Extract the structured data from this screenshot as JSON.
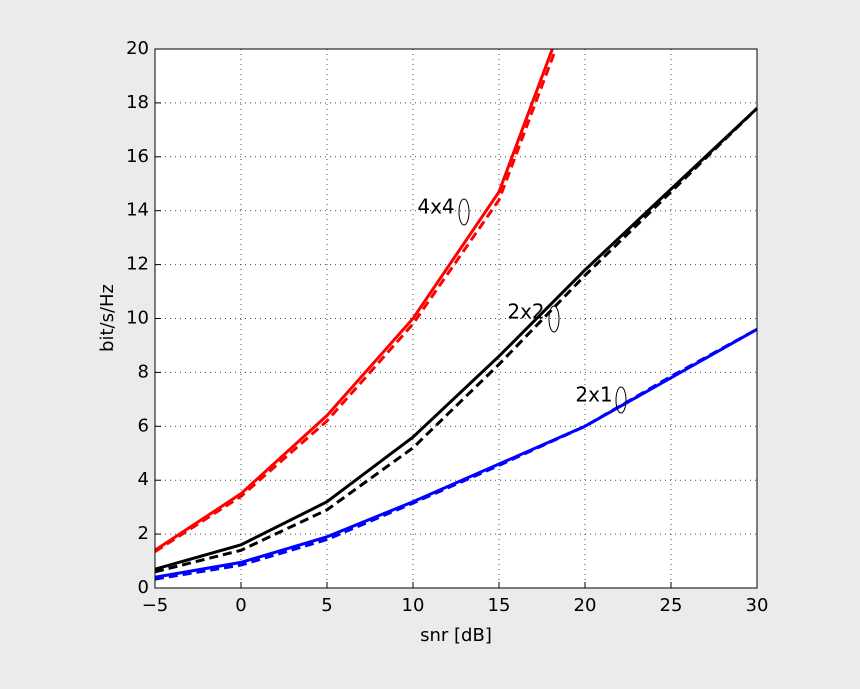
{
  "chart_data": {
    "type": "line",
    "xlabel": "snr [dB]",
    "ylabel": "bit/s/Hz",
    "xlim": [
      -5,
      30
    ],
    "ylim": [
      0,
      20
    ],
    "xticks": [
      {
        "value": -5,
        "label": "−5"
      },
      0,
      5,
      10,
      15,
      20,
      25,
      30
    ],
    "yticks": [
      0,
      2,
      4,
      6,
      8,
      10,
      12,
      14,
      16,
      18,
      20
    ],
    "grid": true,
    "series": [
      {
        "color": "#ff0000",
        "dash": false,
        "x": [
          -5,
          0,
          5,
          10,
          15,
          18.1
        ],
        "values": [
          1.4,
          3.5,
          6.4,
          10.0,
          14.7,
          20
        ]
      },
      {
        "color": "#ff0000",
        "dash": true,
        "x": [
          -5,
          0,
          5,
          10,
          15,
          18.3
        ],
        "values": [
          1.35,
          3.4,
          6.2,
          9.8,
          14.4,
          20
        ]
      },
      {
        "color": "#000000",
        "dash": false,
        "x": [
          -5,
          0,
          5,
          10,
          15,
          20,
          25,
          30
        ],
        "values": [
          0.7,
          1.6,
          3.2,
          5.6,
          8.6,
          11.8,
          14.8,
          17.8
        ]
      },
      {
        "color": "#000000",
        "dash": true,
        "x": [
          -5,
          0,
          5,
          10,
          15,
          20,
          25,
          30
        ],
        "values": [
          0.6,
          1.4,
          2.9,
          5.2,
          8.3,
          11.6,
          14.7,
          17.8
        ]
      },
      {
        "color": "#0000ff",
        "dash": false,
        "x": [
          -5,
          0,
          5,
          10,
          15,
          20,
          25,
          30
        ],
        "values": [
          0.4,
          0.95,
          1.9,
          3.2,
          4.6,
          6.0,
          7.8,
          9.6
        ]
      },
      {
        "color": "#0000ff",
        "dash": true,
        "x": [
          -5,
          0,
          5,
          10,
          15,
          20,
          25,
          30
        ],
        "values": [
          0.33,
          0.85,
          1.8,
          3.15,
          4.55,
          6.0,
          7.85,
          9.6
        ]
      }
    ],
    "annotations": [
      "4x4",
      "2x2",
      "2x1"
    ]
  }
}
